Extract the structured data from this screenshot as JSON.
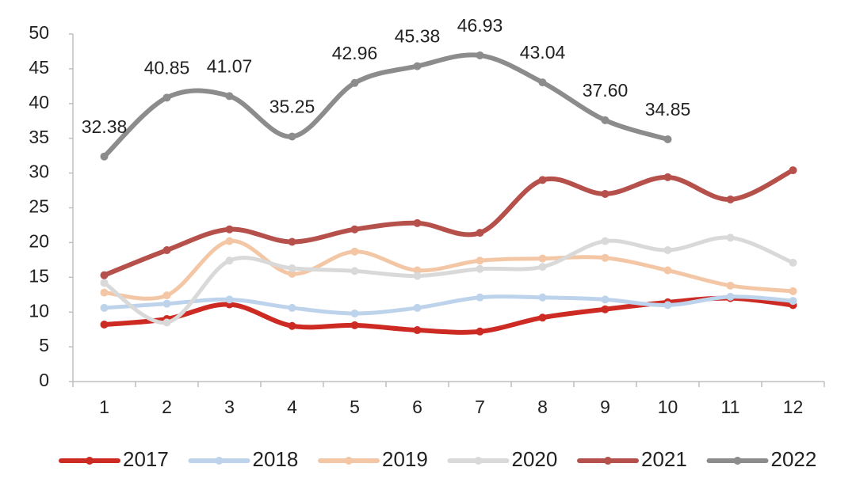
{
  "chart_data": {
    "type": "line",
    "categories": [
      "1",
      "2",
      "3",
      "4",
      "5",
      "6",
      "7",
      "8",
      "9",
      "10",
      "11",
      "12"
    ],
    "ylim": [
      0,
      50
    ],
    "yticks": [
      0,
      5,
      10,
      15,
      20,
      25,
      30,
      35,
      40,
      45,
      50
    ],
    "legend": "bottom",
    "smooth": true,
    "series": [
      {
        "name": "2017",
        "color": "#cc2a22",
        "values": [
          8.2,
          9.0,
          11.1,
          8.0,
          8.1,
          7.4,
          7.2,
          9.2,
          10.4,
          11.4,
          12.0,
          11.0
        ]
      },
      {
        "name": "2018",
        "color": "#bdd3ec",
        "values": [
          10.6,
          11.2,
          11.8,
          10.6,
          9.8,
          10.6,
          12.1,
          12.1,
          11.8,
          11.0,
          12.2,
          11.6
        ]
      },
      {
        "name": "2019",
        "color": "#f3c7a5",
        "values": [
          12.8,
          12.4,
          20.2,
          15.5,
          18.7,
          16.0,
          17.4,
          17.7,
          17.8,
          16.0,
          13.8,
          13.0
        ]
      },
      {
        "name": "2020",
        "color": "#d9d9d9",
        "values": [
          14.2,
          8.5,
          17.4,
          16.3,
          15.9,
          15.2,
          16.2,
          16.5,
          20.2,
          18.9,
          20.7,
          17.1
        ]
      },
      {
        "name": "2021",
        "color": "#b5504b",
        "values": [
          15.3,
          18.9,
          21.9,
          20.1,
          21.9,
          22.8,
          21.4,
          29.0,
          27.0,
          29.4,
          26.2,
          30.4
        ]
      },
      {
        "name": "2022",
        "color": "#8c8c8c",
        "values": [
          32.38,
          40.85,
          41.07,
          35.25,
          42.96,
          45.38,
          46.93,
          43.04,
          37.6,
          34.85,
          null,
          null
        ],
        "value_labels": [
          "32.38",
          "40.85",
          "41.07",
          "35.25",
          "42.96",
          "45.38",
          "46.93",
          "43.04",
          "37.60",
          "34.85",
          null,
          null
        ]
      }
    ]
  }
}
